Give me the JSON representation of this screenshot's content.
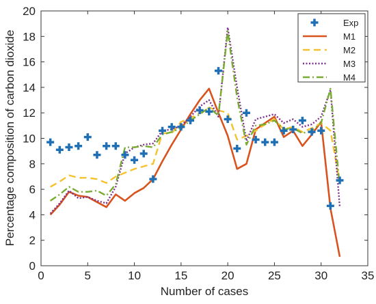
{
  "chart_data": {
    "type": "line",
    "title": "",
    "xlabel": "Number of cases",
    "ylabel": "Percentage composition of carbon dioxide",
    "xlim": [
      0,
      35
    ],
    "ylim": [
      0,
      20
    ],
    "xticks": [
      0,
      5,
      10,
      15,
      20,
      25,
      30,
      35
    ],
    "yticks": [
      0,
      2,
      4,
      6,
      8,
      10,
      12,
      14,
      16,
      18,
      20
    ],
    "grid": false,
    "legend_position": "top-right",
    "x": [
      1,
      2,
      3,
      4,
      5,
      6,
      7,
      8,
      9,
      10,
      11,
      12,
      13,
      14,
      15,
      16,
      17,
      18,
      19,
      20,
      21,
      22,
      23,
      24,
      25,
      26,
      27,
      28,
      29,
      30,
      31,
      32
    ],
    "series": [
      {
        "name": "Exp",
        "style": "markers",
        "marker": "plus",
        "color": "#1f6fb5",
        "values": [
          9.7,
          9.1,
          9.3,
          9.4,
          10.1,
          8.7,
          9.4,
          9.4,
          8.7,
          8.3,
          8.8,
          6.8,
          10.6,
          10.9,
          10.9,
          11.4,
          12.2,
          12.1,
          15.3,
          11.5,
          9.2,
          12.0,
          9.9,
          9.7,
          9.7,
          10.6,
          10.7,
          11.4,
          10.5,
          10.6,
          4.7,
          6.7
        ]
      },
      {
        "name": "M1",
        "style": "solid",
        "color": "#d9531e",
        "values": [
          4.0,
          4.8,
          5.8,
          5.5,
          5.4,
          5.0,
          4.6,
          5.6,
          5.1,
          5.7,
          6.1,
          6.8,
          8.2,
          9.5,
          10.7,
          11.9,
          13.0,
          13.9,
          12.0,
          10.2,
          7.6,
          8.0,
          10.7,
          11.2,
          11.7,
          10.1,
          10.6,
          9.4,
          10.3,
          11.3,
          4.5,
          0.7
        ]
      },
      {
        "name": "M2",
        "style": "dashed",
        "color": "#f5c12c",
        "values": [
          6.2,
          6.6,
          7.1,
          6.9,
          6.9,
          6.8,
          6.5,
          7.0,
          7.3,
          7.6,
          7.8,
          8.0,
          10.4,
          10.4,
          11.3,
          11.6,
          12.0,
          12.4,
          12.2,
          12.0,
          9.9,
          10.2,
          10.6,
          11.1,
          11.5,
          10.7,
          10.9,
          10.5,
          10.8,
          11.2,
          10.6,
          6.5
        ]
      },
      {
        "name": "M3",
        "style": "dotted",
        "color": "#7e2f8e",
        "values": [
          4.1,
          4.9,
          5.9,
          5.3,
          5.4,
          5.1,
          4.9,
          6.2,
          8.8,
          9.3,
          9.5,
          9.6,
          10.6,
          10.7,
          11.0,
          11.7,
          12.5,
          13.0,
          11.7,
          18.7,
          14.0,
          9.8,
          11.5,
          11.7,
          11.9,
          11.2,
          11.5,
          10.9,
          11.1,
          11.7,
          13.8,
          4.6
        ]
      },
      {
        "name": "M4",
        "style": "dashdot",
        "color": "#77ac30",
        "values": [
          5.1,
          5.6,
          6.2,
          5.8,
          5.8,
          5.9,
          5.5,
          6.4,
          9.3,
          9.3,
          9.4,
          9.3,
          10.3,
          10.5,
          10.8,
          11.4,
          11.9,
          12.4,
          11.8,
          18.4,
          13.2,
          9.5,
          11.0,
          11.1,
          11.4,
          10.7,
          10.8,
          10.4,
          10.6,
          11.2,
          13.9,
          6.2
        ]
      }
    ]
  }
}
